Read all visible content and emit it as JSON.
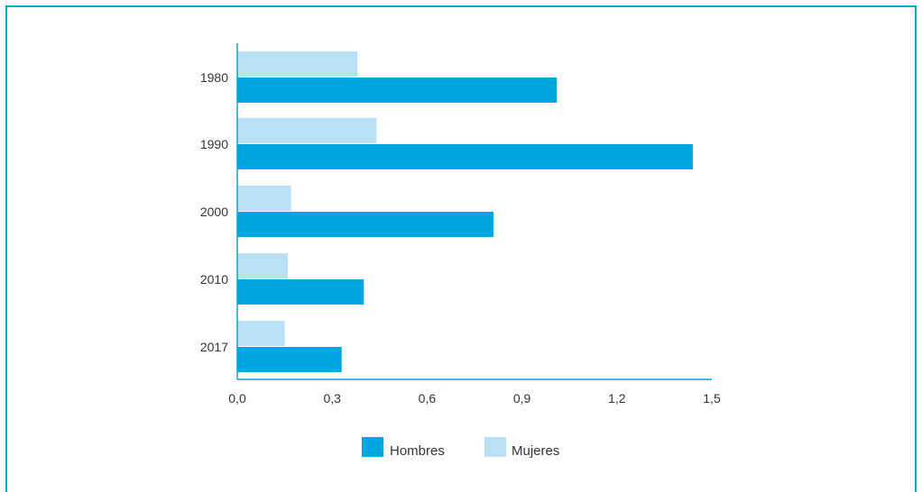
{
  "chart_data": {
    "type": "bar",
    "orientation": "horizontal",
    "title": "",
    "xlabel": "",
    "ylabel": "",
    "categories": [
      "1980",
      "1990",
      "2000",
      "2010",
      "2017"
    ],
    "series": [
      {
        "name": "Mujeres",
        "values": [
          0.38,
          0.44,
          0.17,
          0.16,
          0.15
        ],
        "color": "#b8e0f6"
      },
      {
        "name": "Hombres",
        "values": [
          1.01,
          1.44,
          0.81,
          0.4,
          0.33
        ],
        "color": "#00a6e2"
      }
    ],
    "xlim": [
      0,
      1.5
    ],
    "x_ticks": [
      "0,0",
      "0,3",
      "0,6",
      "0,9",
      "1,2",
      "1,5"
    ],
    "x_tick_values": [
      0,
      0.3,
      0.6,
      0.9,
      1.2,
      1.5
    ],
    "grid": false,
    "legend_position": "bottom-center",
    "legend": [
      {
        "name": "Hombres",
        "color": "#00a6e2"
      },
      {
        "name": "Mujeres",
        "color": "#b8e0f6"
      }
    ],
    "axis_color": "#00a6e2"
  }
}
